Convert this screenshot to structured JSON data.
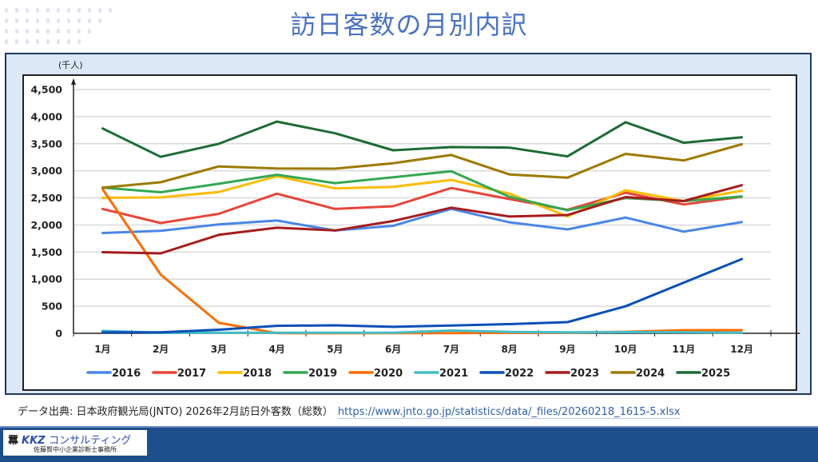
{
  "page": {
    "title": "訪日客数の月別内訳",
    "source_label": "データ出典: 日本政府観光局(JNTO) 2026年2月訪日外客数（総数）",
    "source_url": "https://www.jnto.go.jp/statistics/data/_files/20260218_1615-5.xlsx",
    "logo_title": "KKZ",
    "logo_title_kana": "コンサルティング",
    "logo_subtitle": "佐藤賢中小企業診断士事務所"
  },
  "chart_data": {
    "type": "line",
    "title": "訪日客数の月別内訳",
    "ylabel": "(千人)",
    "xlabel": "",
    "ylim": [
      0,
      4500
    ],
    "yticks": [
      0,
      500,
      1000,
      1500,
      2000,
      2500,
      3000,
      3500,
      4000,
      4500
    ],
    "ytick_labels": [
      "0",
      "500",
      "1,000",
      "1,500",
      "2,000",
      "2,500",
      "3,000",
      "3,500",
      "4,000",
      "4,500"
    ],
    "grid": true,
    "legend_position": "bottom",
    "categories": [
      "1月",
      "2月",
      "3月",
      "4月",
      "5月",
      "6月",
      "7月",
      "8月",
      "9月",
      "10月",
      "11月",
      "12月"
    ],
    "series": [
      {
        "name": "2016",
        "color": "#4a86e8",
        "values": [
          1852,
          1891,
          2010,
          2082,
          1897,
          1985,
          2297,
          2049,
          1918,
          2136,
          1876,
          2054
        ]
      },
      {
        "name": "2017",
        "color": "#e8453c",
        "values": [
          2296,
          2036,
          2206,
          2578,
          2295,
          2346,
          2682,
          2478,
          2280,
          2595,
          2378,
          2521
        ]
      },
      {
        "name": "2018",
        "color": "#fbbc04",
        "values": [
          2501,
          2509,
          2609,
          2901,
          2675,
          2705,
          2832,
          2578,
          2159,
          2641,
          2441,
          2632
        ]
      },
      {
        "name": "2019",
        "color": "#34a853",
        "values": [
          2689,
          2604,
          2760,
          2927,
          2773,
          2880,
          2991,
          2520,
          2272,
          2497,
          2441,
          2526
        ]
      },
      {
        "name": "2020",
        "color": "#ff6d01",
        "values": [
          2661,
          1085,
          193,
          3,
          2,
          3,
          4,
          9,
          14,
          28,
          57,
          59
        ]
      },
      {
        "name": "2021",
        "color": "#46bdc6",
        "values": [
          46,
          7,
          12,
          11,
          10,
          10,
          52,
          26,
          18,
          22,
          21,
          12
        ]
      },
      {
        "name": "2022",
        "color": "#0b4fb8",
        "values": [
          17,
          17,
          66,
          139,
          147,
          120,
          145,
          170,
          207,
          499,
          935,
          1370
        ]
      },
      {
        "name": "2023",
        "color": "#a61c1c",
        "values": [
          1497,
          1475,
          1817,
          1949,
          1899,
          2073,
          2320,
          2156,
          2184,
          2516,
          2442,
          2734
        ]
      },
      {
        "name": "2024",
        "color": "#9c7a00",
        "values": [
          2688,
          2788,
          3081,
          3042,
          3040,
          3140,
          3292,
          2933,
          2872,
          3312,
          3190,
          3489
        ]
      },
      {
        "name": "2025",
        "color": "#1e6b35",
        "values": [
          3781,
          3258,
          3498,
          3908,
          3693,
          3378,
          3437,
          3428,
          3267,
          3897,
          3518,
          3619
        ]
      }
    ]
  }
}
